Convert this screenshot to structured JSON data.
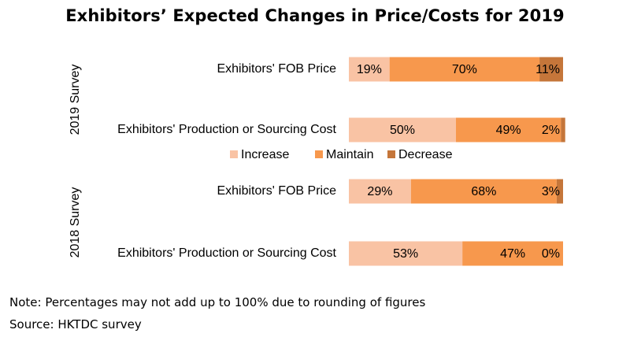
{
  "chart_data": {
    "type": "bar",
    "stacked": true,
    "orientation": "horizontal",
    "title": "Exhibitors’ Expected Changes in Price/Costs for 2019",
    "legend_position": "middle",
    "legend": [
      {
        "name": "Increase",
        "color": "#f9c3a4"
      },
      {
        "name": "Maintain",
        "color": "#f7984d"
      },
      {
        "name": "Decrease",
        "color": "#c5763a"
      }
    ],
    "groups": [
      {
        "label": "2019 Survey",
        "rows": [
          {
            "label": "Exhibitors' FOB Price",
            "values": [
              19,
              70,
              11
            ],
            "labels": [
              "19%",
              "70%",
              "11%"
            ]
          },
          {
            "label": "Exhibitors' Production or Sourcing Cost",
            "values": [
              50,
              49,
              2
            ],
            "labels": [
              "50%",
              "49%",
              "2%"
            ]
          }
        ]
      },
      {
        "label": "2018 Survey",
        "rows": [
          {
            "label": "Exhibitors' FOB Price",
            "values": [
              29,
              68,
              3
            ],
            "labels": [
              "29%",
              "68%",
              "3%"
            ]
          },
          {
            "label": "Exhibitors' Production or Sourcing Cost",
            "values": [
              53,
              47,
              0
            ],
            "labels": [
              "53%",
              "47%",
              "0%"
            ]
          }
        ]
      }
    ]
  },
  "footer": {
    "note": "Note: Percentages may not add up to 100% due to rounding of figures",
    "source": "Source: HKTDC survey"
  }
}
